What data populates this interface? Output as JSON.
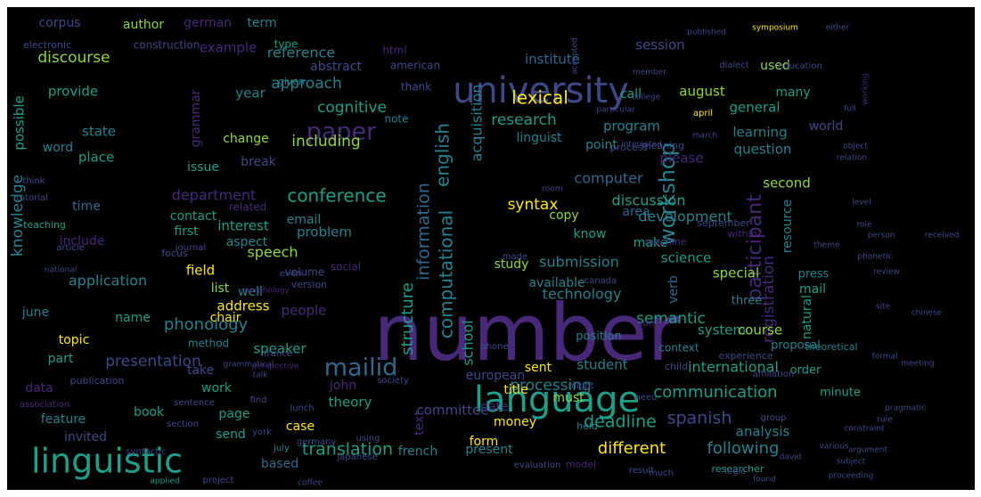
{
  "wordcloud": {
    "background": "#000000",
    "palette": {
      "purple": "#482878",
      "indigo": "#3e4989",
      "blue": "#31688e",
      "teal": "#26828e",
      "green": "#1f9e89",
      "lime": "#35b779",
      "yellowgreen": "#90d743",
      "yellow": "#fde725"
    },
    "words": [
      {
        "text": "number",
        "color": "purple"
      },
      {
        "text": "language",
        "color": "green"
      },
      {
        "text": "university",
        "color": "indigo"
      },
      {
        "text": "linguistic",
        "color": "green"
      },
      {
        "text": "mailid",
        "color": "blue"
      },
      {
        "text": "paper",
        "color": "purple"
      },
      {
        "text": "workshop",
        "color": "teal"
      },
      {
        "text": "english",
        "color": "teal"
      },
      {
        "text": "information",
        "color": "blue"
      },
      {
        "text": "computational",
        "color": "teal"
      },
      {
        "text": "conference",
        "color": "green"
      },
      {
        "text": "participant",
        "color": "purple"
      },
      {
        "text": "registration",
        "color": "purple"
      },
      {
        "text": "knowledge",
        "color": "teal"
      },
      {
        "text": "structure",
        "color": "green"
      },
      {
        "text": "lexical",
        "color": "yellow"
      },
      {
        "text": "translation",
        "color": "green"
      },
      {
        "text": "deadline",
        "color": "green"
      },
      {
        "text": "spanish",
        "color": "indigo"
      },
      {
        "text": "different",
        "color": "yellow"
      },
      {
        "text": "following",
        "color": "teal"
      },
      {
        "text": "research",
        "color": "green"
      },
      {
        "text": "communication",
        "color": "green"
      },
      {
        "text": "presentation",
        "color": "indigo"
      },
      {
        "text": "phonology",
        "color": "teal"
      },
      {
        "text": "cognitive",
        "color": "green"
      },
      {
        "text": "approach",
        "color": "teal"
      },
      {
        "text": "grammar",
        "color": "purple"
      },
      {
        "text": "discourse",
        "color": "yellowgreen"
      },
      {
        "text": "acquisition",
        "color": "teal"
      },
      {
        "text": "syntax",
        "color": "yellow"
      },
      {
        "text": "application",
        "color": "teal"
      },
      {
        "text": "processing",
        "color": "teal"
      },
      {
        "text": "international",
        "color": "green"
      },
      {
        "text": "semantic",
        "color": "green"
      },
      {
        "text": "technology",
        "color": "teal"
      },
      {
        "text": "development",
        "color": "teal"
      },
      {
        "text": "discussion",
        "color": "green"
      },
      {
        "text": "submission",
        "color": "teal"
      },
      {
        "text": "computer",
        "color": "blue"
      },
      {
        "text": "department",
        "color": "purple"
      },
      {
        "text": "reference",
        "color": "teal"
      },
      {
        "text": "institute",
        "color": "blue"
      },
      {
        "text": "committee",
        "color": "indigo"
      },
      {
        "text": "european",
        "color": "indigo"
      },
      {
        "text": "including",
        "color": "yellowgreen"
      },
      {
        "text": "interest",
        "color": "green"
      },
      {
        "text": "speech",
        "color": "yellowgreen"
      },
      {
        "text": "speaker",
        "color": "green"
      },
      {
        "text": "people",
        "color": "purple"
      },
      {
        "text": "student",
        "color": "teal"
      },
      {
        "text": "school",
        "color": "green"
      },
      {
        "text": "theory",
        "color": "green"
      },
      {
        "text": "system",
        "color": "green"
      },
      {
        "text": "natural",
        "color": "green"
      },
      {
        "text": "course",
        "color": "yellowgreen"
      },
      {
        "text": "problem",
        "color": "teal"
      },
      {
        "text": "question",
        "color": "teal"
      },
      {
        "text": "program",
        "color": "teal"
      },
      {
        "text": "learning",
        "color": "teal"
      },
      {
        "text": "general",
        "color": "green"
      },
      {
        "text": "session",
        "color": "indigo"
      },
      {
        "text": "corpus",
        "color": "indigo"
      },
      {
        "text": "author",
        "color": "yellowgreen"
      },
      {
        "text": "german",
        "color": "purple"
      },
      {
        "text": "provide",
        "color": "green"
      },
      {
        "text": "possible",
        "color": "green"
      },
      {
        "text": "example",
        "color": "purple"
      },
      {
        "text": "abstract",
        "color": "indigo"
      },
      {
        "text": "august",
        "color": "yellowgreen"
      },
      {
        "text": "second",
        "color": "yellowgreen"
      },
      {
        "text": "please",
        "color": "purple"
      },
      {
        "text": "analysis",
        "color": "teal"
      },
      {
        "text": "special",
        "color": "yellowgreen"
      },
      {
        "text": "science",
        "color": "green"
      },
      {
        "text": "available",
        "color": "teal"
      },
      {
        "text": "address",
        "color": "yellow"
      },
      {
        "text": "contact",
        "color": "green"
      },
      {
        "text": "include",
        "color": "purple"
      },
      {
        "text": "first",
        "color": "green"
      },
      {
        "text": "field",
        "color": "yellow"
      },
      {
        "text": "change",
        "color": "yellowgreen"
      },
      {
        "text": "break",
        "color": "indigo"
      },
      {
        "text": "issue",
        "color": "green"
      },
      {
        "text": "place",
        "color": "green"
      },
      {
        "text": "word",
        "color": "teal"
      },
      {
        "text": "state",
        "color": "teal"
      },
      {
        "text": "year",
        "color": "teal"
      },
      {
        "text": "data",
        "color": "purple"
      },
      {
        "text": "feature",
        "color": "teal"
      },
      {
        "text": "invited",
        "color": "indigo"
      },
      {
        "text": "book",
        "color": "green"
      },
      {
        "text": "work",
        "color": "green"
      },
      {
        "text": "take",
        "color": "indigo"
      },
      {
        "text": "page",
        "color": "green"
      },
      {
        "text": "send",
        "color": "green"
      },
      {
        "text": "case",
        "color": "yellow"
      },
      {
        "text": "based",
        "color": "blue"
      },
      {
        "text": "john",
        "color": "purple"
      },
      {
        "text": "topic",
        "color": "yellow"
      },
      {
        "text": "part",
        "color": "green"
      },
      {
        "text": "name",
        "color": "green"
      },
      {
        "text": "chair",
        "color": "yellow"
      },
      {
        "text": "list",
        "color": "yellowgreen"
      },
      {
        "text": "well",
        "color": "teal"
      },
      {
        "text": "june",
        "color": "teal"
      },
      {
        "text": "time",
        "color": "blue"
      },
      {
        "text": "text",
        "color": "purple"
      },
      {
        "text": "email",
        "color": "teal"
      },
      {
        "text": "aspect",
        "color": "teal"
      },
      {
        "text": "french",
        "color": "teal"
      },
      {
        "text": "present",
        "color": "teal"
      },
      {
        "text": "money",
        "color": "yellow"
      },
      {
        "text": "date",
        "color": "purple"
      },
      {
        "text": "title",
        "color": "yellow"
      },
      {
        "text": "form",
        "color": "yellow"
      },
      {
        "text": "must",
        "color": "yellowgreen"
      },
      {
        "text": "sent",
        "color": "yellow"
      },
      {
        "text": "study",
        "color": "yellowgreen"
      },
      {
        "text": "copy",
        "color": "yellowgreen"
      },
      {
        "text": "know",
        "color": "green"
      },
      {
        "text": "make",
        "color": "green"
      },
      {
        "text": "area",
        "color": "blue"
      },
      {
        "text": "point",
        "color": "teal"
      },
      {
        "text": "linguist",
        "color": "teal"
      },
      {
        "text": "call",
        "color": "green"
      },
      {
        "text": "used",
        "color": "yellowgreen"
      },
      {
        "text": "many",
        "color": "green"
      },
      {
        "text": "world",
        "color": "indigo"
      },
      {
        "text": "term",
        "color": "teal"
      },
      {
        "text": "html",
        "color": "purple"
      },
      {
        "text": "american",
        "color": "indigo"
      },
      {
        "text": "construction",
        "color": "indigo"
      },
      {
        "text": "electronic",
        "color": "indigo"
      },
      {
        "text": "verb",
        "color": "blue"
      },
      {
        "text": "resource",
        "color": "teal"
      },
      {
        "text": "minute",
        "color": "green"
      },
      {
        "text": "order",
        "color": "green"
      },
      {
        "text": "mail",
        "color": "green"
      },
      {
        "text": "press",
        "color": "teal"
      },
      {
        "text": "position",
        "color": "teal"
      },
      {
        "text": "proposal",
        "color": "teal"
      },
      {
        "text": "three",
        "color": "teal"
      },
      {
        "text": "note",
        "color": "teal"
      },
      {
        "text": "type",
        "color": "green"
      },
      {
        "text": "thank",
        "color": "indigo"
      },
      {
        "text": "social",
        "color": "purple"
      },
      {
        "text": "volume",
        "color": "indigo"
      },
      {
        "text": "method",
        "color": "teal"
      },
      {
        "text": "context",
        "color": "teal"
      },
      {
        "text": "experience",
        "color": "indigo"
      },
      {
        "text": "theoretical",
        "color": "teal"
      },
      {
        "text": "machine",
        "color": "purple"
      },
      {
        "text": "human",
        "color": "purple"
      },
      {
        "text": "child",
        "color": "indigo"
      },
      {
        "text": "within",
        "color": "purple"
      },
      {
        "text": "related",
        "color": "purple"
      },
      {
        "text": "version",
        "color": "indigo"
      },
      {
        "text": "focus",
        "color": "indigo"
      },
      {
        "text": "teaching",
        "color": "green"
      },
      {
        "text": "journal",
        "color": "indigo"
      },
      {
        "text": "given",
        "color": "teal"
      },
      {
        "text": "think",
        "color": "indigo"
      },
      {
        "text": "tutorial",
        "color": "indigo"
      },
      {
        "text": "article",
        "color": "indigo"
      },
      {
        "text": "national",
        "color": "indigo"
      },
      {
        "text": "even",
        "color": "indigo"
      },
      {
        "text": "morphology",
        "color": "purple"
      },
      {
        "text": "france",
        "color": "indigo"
      },
      {
        "text": "perspective",
        "color": "purple"
      },
      {
        "text": "publication",
        "color": "indigo"
      },
      {
        "text": "association",
        "color": "purple"
      },
      {
        "text": "sentence",
        "color": "indigo"
      },
      {
        "text": "section",
        "color": "indigo"
      },
      {
        "text": "syntactic",
        "color": "indigo"
      },
      {
        "text": "applied",
        "color": "green"
      },
      {
        "text": "project",
        "color": "indigo"
      },
      {
        "text": "find",
        "color": "indigo"
      },
      {
        "text": "lunch",
        "color": "indigo"
      },
      {
        "text": "york",
        "color": "indigo"
      },
      {
        "text": "july",
        "color": "teal"
      },
      {
        "text": "germany",
        "color": "indigo"
      },
      {
        "text": "japanese",
        "color": "indigo"
      },
      {
        "text": "using",
        "color": "indigo"
      },
      {
        "text": "phone",
        "color": "indigo"
      },
      {
        "text": "held",
        "color": "teal"
      },
      {
        "text": "model",
        "color": "purple"
      },
      {
        "text": "evaluation",
        "color": "indigo"
      },
      {
        "text": "result",
        "color": "indigo"
      },
      {
        "text": "researcher",
        "color": "green"
      },
      {
        "text": "logic",
        "color": "indigo"
      },
      {
        "text": "group",
        "color": "indigo"
      },
      {
        "text": "affiliation",
        "color": "indigo"
      },
      {
        "text": "much",
        "color": "indigo"
      },
      {
        "text": "society",
        "color": "indigo"
      },
      {
        "text": "might",
        "color": "indigo"
      },
      {
        "text": "need",
        "color": "indigo"
      },
      {
        "text": "meaning",
        "color": "indigo"
      },
      {
        "text": "process",
        "color": "indigo"
      },
      {
        "text": "september",
        "color": "indigo"
      },
      {
        "text": "canada",
        "color": "indigo"
      },
      {
        "text": "made",
        "color": "indigo"
      },
      {
        "text": "published",
        "color": "indigo"
      },
      {
        "text": "symposium",
        "color": "yellow"
      },
      {
        "text": "dialect",
        "color": "indigo"
      },
      {
        "text": "education",
        "color": "indigo"
      },
      {
        "text": "either",
        "color": "indigo"
      },
      {
        "text": "member",
        "color": "indigo"
      },
      {
        "text": "college",
        "color": "indigo"
      },
      {
        "text": "april",
        "color": "yellow"
      },
      {
        "text": "march",
        "color": "indigo"
      },
      {
        "text": "particular",
        "color": "indigo"
      },
      {
        "text": "interested",
        "color": "indigo"
      },
      {
        "text": "accepted",
        "color": "indigo"
      },
      {
        "text": "room",
        "color": "indigo"
      },
      {
        "text": "working",
        "color": "purple"
      },
      {
        "text": "object",
        "color": "indigo"
      },
      {
        "text": "relation",
        "color": "indigo"
      },
      {
        "text": "phonetic",
        "color": "indigo"
      },
      {
        "text": "theme",
        "color": "indigo"
      },
      {
        "text": "person",
        "color": "indigo"
      },
      {
        "text": "role",
        "color": "indigo"
      },
      {
        "text": "level",
        "color": "indigo"
      },
      {
        "text": "full",
        "color": "indigo"
      },
      {
        "text": "review",
        "color": "indigo"
      },
      {
        "text": "site",
        "color": "indigo"
      },
      {
        "text": "formal",
        "color": "indigo"
      },
      {
        "text": "argument",
        "color": "indigo"
      },
      {
        "text": "rule",
        "color": "indigo"
      },
      {
        "text": "constraint",
        "color": "indigo"
      },
      {
        "text": "various",
        "color": "indigo"
      },
      {
        "text": "found",
        "color": "indigo"
      },
      {
        "text": "meeting",
        "color": "indigo"
      },
      {
        "text": "pragmatic",
        "color": "indigo"
      },
      {
        "text": "coffee",
        "color": "indigo"
      },
      {
        "text": "grammatical",
        "color": "indigo"
      },
      {
        "text": "talk",
        "color": "indigo"
      },
      {
        "text": "david",
        "color": "indigo"
      },
      {
        "text": "subject",
        "color": "indigo"
      },
      {
        "text": "proceeding",
        "color": "indigo"
      },
      {
        "text": "received",
        "color": "indigo"
      },
      {
        "text": "chinese",
        "color": "indigo"
      }
    ]
  }
}
